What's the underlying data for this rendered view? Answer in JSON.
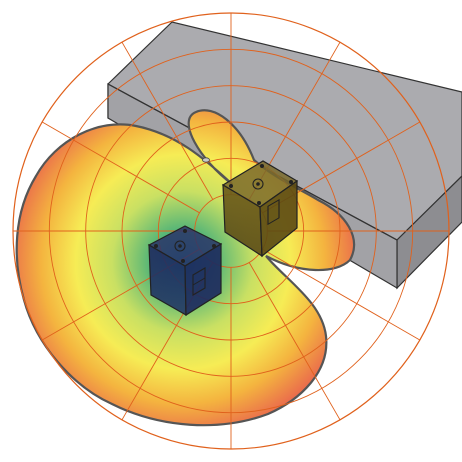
{
  "diagram": {
    "type": "polar-coverage-plot",
    "polar_grid": {
      "rings": 6,
      "spokes": 12,
      "color": "#e0611c"
    },
    "coverage": {
      "gradient_stops": [
        "#1a8f86",
        "#55b577",
        "#c9e063",
        "#f6ec55",
        "#f4b43f",
        "#ea6a4c",
        "#e24654"
      ],
      "outline_color": "#555555"
    },
    "wall_block": {
      "top_color": "#b4b4b8",
      "front_color": "#9c9ca0",
      "side_color": "#86868a"
    },
    "speakers": [
      {
        "id": "speaker-1",
        "tint": "#1f2a6a",
        "has_display": true
      },
      {
        "id": "speaker-2",
        "tint": "#6a5616",
        "has_display": true
      }
    ]
  }
}
